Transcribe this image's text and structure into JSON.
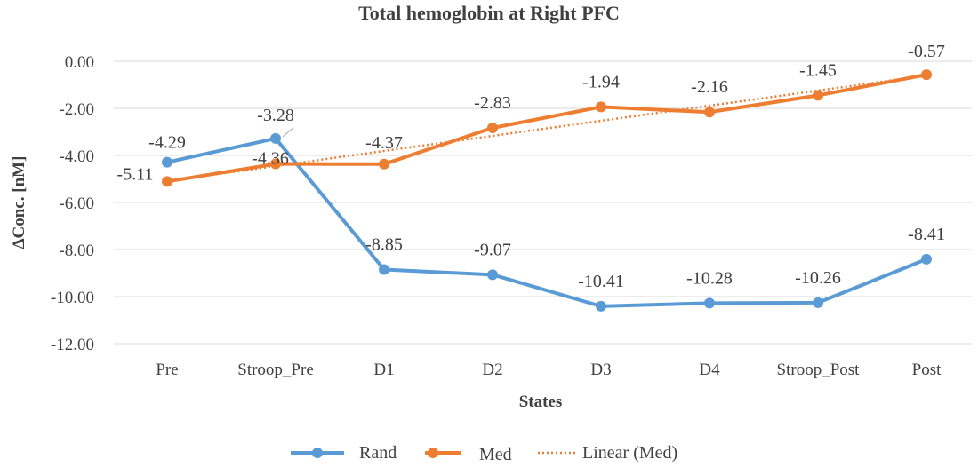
{
  "chart_data": {
    "type": "line",
    "title": "Total hemoglobin at Right PFC",
    "xlabel": "States",
    "ylabel": "ΔConc. [nM]",
    "categories": [
      "Pre",
      "Stroop_Pre",
      "D1",
      "D2",
      "D3",
      "D4",
      "Stroop_Post",
      "Post"
    ],
    "ylim": [
      -12,
      0
    ],
    "ytick_step": 2,
    "ytick_labels": [
      "0.00",
      "-2.00",
      "-4.00",
      "-6.00",
      "-8.00",
      "-10.00",
      "-12.00"
    ],
    "grid": true,
    "legend_position": "bottom",
    "series": [
      {
        "name": "Rand",
        "color": "#5b9bd5",
        "values": [
          -4.29,
          -3.28,
          -8.85,
          -9.07,
          -10.41,
          -10.28,
          -10.26,
          -8.41
        ],
        "labels": [
          "-4.29",
          "-3.28",
          "-8.85",
          "-9.07",
          "-10.41",
          "-10.28",
          "-10.26",
          "-8.41"
        ]
      },
      {
        "name": "Med",
        "color": "#ed7d31",
        "values": [
          -5.11,
          -4.36,
          -4.37,
          -2.83,
          -1.94,
          -2.16,
          -1.45,
          -0.57
        ],
        "labels": [
          "-5.11",
          "-4.36",
          "-4.37",
          "-2.83",
          "-1.94",
          "-2.16",
          "-1.45",
          "-0.57"
        ]
      }
    ],
    "trendline": {
      "name": "Linear (Med)",
      "of_series": "Med",
      "color": "#ed7d31",
      "style": "dotted"
    }
  }
}
